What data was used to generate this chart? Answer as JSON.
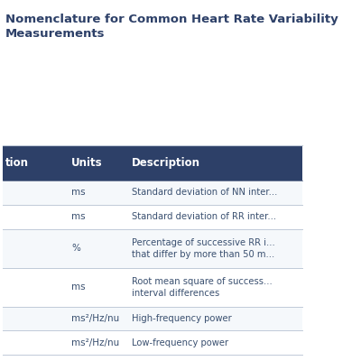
{
  "title_line1": "Nomenclature for Common Heart Rate Va",
  "title_line2": "riability Measure\nments",
  "title_full": "Nomenclature for Common Heart Rate Va⁠riability\nMeasurements",
  "header_bg": "#2d4068",
  "header_text_color": "#ffffff",
  "header_cols": [
    "tion",
    "Units",
    "Description"
  ],
  "row_bg_odd": "#f0f4f8",
  "row_bg_even": "#ffffff",
  "divider_color": "#c0cad8",
  "text_color": "#3a5070",
  "units_color": "#3a5070",
  "desc_color": "#3a5070",
  "title_color": "#2d4068",
  "background_color": "#ffffff",
  "rows": [
    {
      "unit": "ms",
      "desc": "Standard deviation of NN inter..."
    },
    {
      "unit": "ms",
      "desc": "Standard deviation of RR inter..."
    },
    {
      "unit": "%",
      "desc": "Percentage of successive RR i...\nthat differ by more than 50 m..."
    },
    {
      "unit": "ms",
      "desc": "Root mean square of success...\ninterval differences"
    },
    {
      "unit": "ms²/Hz/nu",
      "desc": "High-frequency power"
    },
    {
      "unit": "ms²/Hz/nu",
      "desc": "Low-frequency power"
    }
  ]
}
